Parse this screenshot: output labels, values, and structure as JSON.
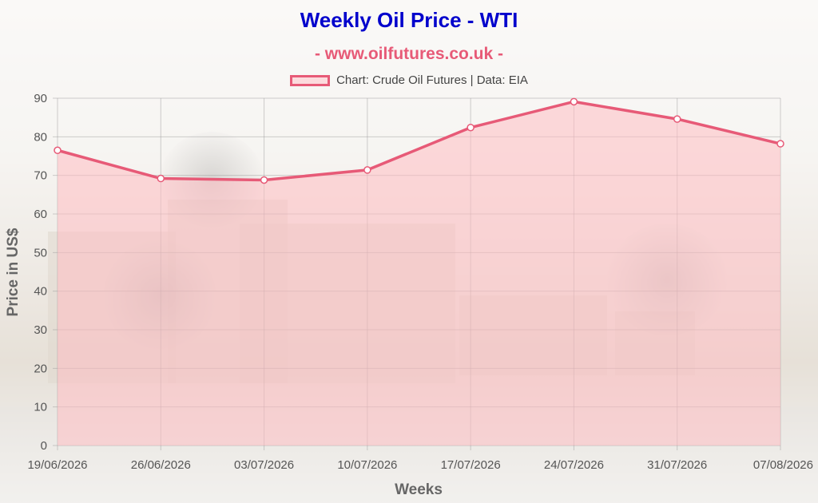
{
  "header": {
    "title": "Weekly Oil Price - WTI",
    "subtitle": "- www.oilfutures.co.uk -",
    "legend_label": "Chart: Crude Oil Futures | Data: EIA"
  },
  "chart_data": {
    "type": "area",
    "title": "Weekly Oil Price - WTI",
    "subtitle": "- www.oilfutures.co.uk -",
    "xlabel": "Weeks",
    "ylabel": "Price in US$",
    "categories": [
      "19/06/2026",
      "26/06/2026",
      "03/07/2026",
      "10/07/2026",
      "17/07/2026",
      "24/07/2026",
      "31/07/2026",
      "07/08/2026"
    ],
    "series": [
      {
        "name": "Chart: Crude Oil Futures | Data: EIA",
        "values": [
          76.5,
          69.2,
          68.8,
          71.4,
          82.4,
          89.1,
          84.6,
          78.2
        ]
      }
    ],
    "ylim": [
      0,
      90
    ],
    "yticks": [
      0,
      10,
      20,
      30,
      40,
      50,
      60,
      70,
      80,
      90
    ],
    "grid": true,
    "legend_position": "top-center",
    "colors": {
      "line": "#e75a77",
      "fill": "rgba(255, 190, 195, 0.55)",
      "title": "#0000cc",
      "subtitle": "#e75a77"
    }
  }
}
